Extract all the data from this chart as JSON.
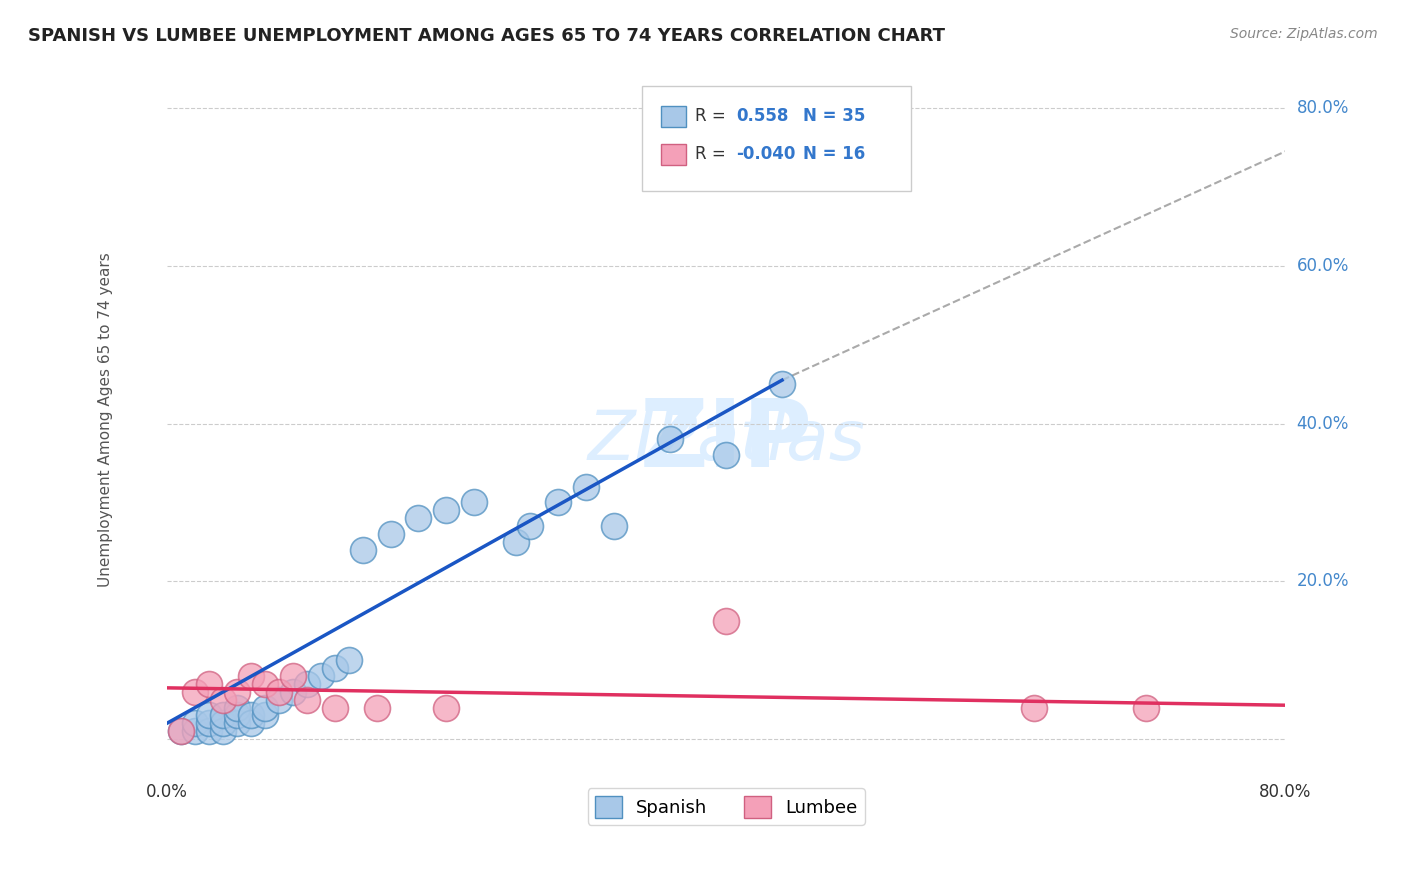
{
  "title": "SPANISH VS LUMBEE UNEMPLOYMENT AMONG AGES 65 TO 74 YEARS CORRELATION CHART",
  "source": "Source: ZipAtlas.com",
  "ylabel": "Unemployment Among Ages 65 to 74 years",
  "xlim": [
    0.0,
    0.8
  ],
  "ylim": [
    -0.04,
    0.85
  ],
  "ytick_vals": [
    0.0,
    0.2,
    0.4,
    0.6,
    0.8
  ],
  "ytick_labels": [
    "",
    "20.0%",
    "40.0%",
    "60.0%",
    "80.0%"
  ],
  "xtick_labels": [
    "0.0%",
    "80.0%"
  ],
  "spanish_r": 0.558,
  "spanish_n": 35,
  "lumbee_r": -0.04,
  "lumbee_n": 16,
  "spanish_color": "#a8c8e8",
  "lumbee_color": "#f4a0b8",
  "spanish_edge_color": "#5090c0",
  "lumbee_edge_color": "#d06080",
  "spanish_line_color": "#1a56c4",
  "lumbee_line_color": "#e03060",
  "dash_line_color": "#aaaaaa",
  "watermark_color": "#ddeeff",
  "grid_color": "#cccccc",
  "background_color": "#ffffff",
  "spanish_points": [
    [
      0.01,
      0.01
    ],
    [
      0.02,
      0.01
    ],
    [
      0.02,
      0.02
    ],
    [
      0.03,
      0.01
    ],
    [
      0.03,
      0.02
    ],
    [
      0.03,
      0.03
    ],
    [
      0.04,
      0.01
    ],
    [
      0.04,
      0.02
    ],
    [
      0.04,
      0.03
    ],
    [
      0.05,
      0.02
    ],
    [
      0.05,
      0.03
    ],
    [
      0.05,
      0.04
    ],
    [
      0.06,
      0.02
    ],
    [
      0.06,
      0.03
    ],
    [
      0.07,
      0.03
    ],
    [
      0.07,
      0.04
    ],
    [
      0.08,
      0.05
    ],
    [
      0.09,
      0.06
    ],
    [
      0.1,
      0.07
    ],
    [
      0.11,
      0.08
    ],
    [
      0.12,
      0.09
    ],
    [
      0.13,
      0.1
    ],
    [
      0.14,
      0.24
    ],
    [
      0.16,
      0.26
    ],
    [
      0.18,
      0.28
    ],
    [
      0.2,
      0.29
    ],
    [
      0.22,
      0.3
    ],
    [
      0.25,
      0.25
    ],
    [
      0.26,
      0.27
    ],
    [
      0.28,
      0.3
    ],
    [
      0.3,
      0.32
    ],
    [
      0.32,
      0.27
    ],
    [
      0.36,
      0.38
    ],
    [
      0.4,
      0.36
    ],
    [
      0.44,
      0.45
    ]
  ],
  "lumbee_points": [
    [
      0.01,
      0.01
    ],
    [
      0.02,
      0.06
    ],
    [
      0.03,
      0.07
    ],
    [
      0.04,
      0.05
    ],
    [
      0.05,
      0.06
    ],
    [
      0.06,
      0.08
    ],
    [
      0.07,
      0.07
    ],
    [
      0.08,
      0.06
    ],
    [
      0.09,
      0.08
    ],
    [
      0.1,
      0.05
    ],
    [
      0.12,
      0.04
    ],
    [
      0.15,
      0.04
    ],
    [
      0.2,
      0.04
    ],
    [
      0.4,
      0.15
    ],
    [
      0.62,
      0.04
    ],
    [
      0.7,
      0.04
    ]
  ],
  "spanish_line": [
    [
      0.0,
      0.02
    ],
    [
      0.44,
      0.455
    ]
  ],
  "lumbee_line": [
    [
      0.0,
      0.065
    ],
    [
      0.8,
      0.043
    ]
  ],
  "dash_line": [
    [
      0.44,
      0.455
    ],
    [
      0.8,
      0.745
    ]
  ]
}
